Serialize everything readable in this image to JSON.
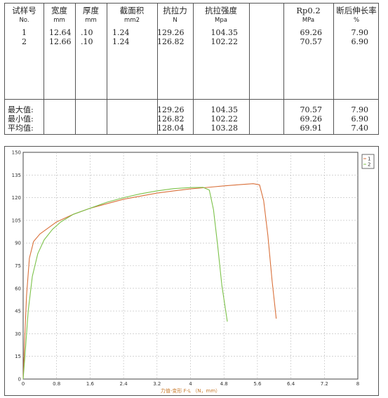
{
  "table": {
    "headers": [
      {
        "title": "试样号",
        "unit": "No."
      },
      {
        "title": "宽度",
        "unit": "mm"
      },
      {
        "title": "厚度",
        "unit": "mm"
      },
      {
        "title": "截面积",
        "unit": "mm2"
      },
      {
        "title": "抗拉力",
        "unit": "N"
      },
      {
        "title": "抗拉强度",
        "unit": "Mpa"
      },
      {
        "title": "",
        "unit": ""
      },
      {
        "title": "Rp0.2",
        "unit": "MPa"
      },
      {
        "title": "断后伸长率",
        "unit": "%"
      }
    ],
    "rows": [
      [
        "1",
        "12.64",
        ".10",
        "1.24",
        "129.26",
        "104.35",
        "",
        "69.26",
        "7.90"
      ],
      [
        "2",
        "12.66",
        ".10",
        "1.24",
        "126.82",
        "102.22",
        "",
        "70.57",
        "6.90"
      ]
    ],
    "summary": [
      [
        "最大值:",
        "",
        "",
        "",
        "129.26",
        "104.35",
        "",
        "70.57",
        "7.90"
      ],
      [
        "最小值:",
        "",
        "",
        "",
        "126.82",
        "102.22",
        "",
        "69.26",
        "6.90"
      ],
      [
        "平均值:",
        "",
        "",
        "",
        "128.04",
        "103.28",
        "",
        "69.91",
        "7.40"
      ]
    ]
  },
  "chart_data": {
    "type": "line",
    "xlabel": "力值-变形 F-L  （N，mm）",
    "xlim": [
      0,
      8
    ],
    "ylim": [
      0,
      150
    ],
    "xticks": [
      "0",
      "0.8",
      "1.6",
      "2.4",
      "3.2",
      "4",
      "4.8",
      "5.6",
      "6.4",
      "7.2",
      "8"
    ],
    "yticks": [
      "0",
      "15",
      "30",
      "45",
      "60",
      "75",
      "90",
      "105",
      "120",
      "135",
      "150"
    ],
    "grid": true,
    "legend": [
      "1",
      "2"
    ],
    "legend_position": "top-right",
    "series": [
      {
        "name": "1",
        "color": "#d9703a",
        "x": [
          0,
          0.03,
          0.08,
          0.15,
          0.25,
          0.4,
          0.6,
          0.8,
          1.2,
          1.6,
          2.0,
          2.4,
          2.8,
          3.2,
          3.6,
          4.0,
          4.4,
          4.8,
          5.2,
          5.5,
          5.65,
          5.75,
          5.85,
          5.95,
          6.05
        ],
        "y": [
          0,
          22,
          55,
          80,
          91,
          96,
          100,
          104,
          109,
          113,
          116,
          119,
          121,
          123,
          124.5,
          125.8,
          126.8,
          127.8,
          128.7,
          129.26,
          128.5,
          118,
          95,
          65,
          40
        ]
      },
      {
        "name": "2",
        "color": "#7cc24a",
        "x": [
          0,
          0.05,
          0.12,
          0.22,
          0.35,
          0.5,
          0.7,
          0.9,
          1.2,
          1.6,
          2.0,
          2.4,
          2.8,
          3.2,
          3.6,
          4.0,
          4.3,
          4.45,
          4.55,
          4.65,
          4.75,
          4.88
        ],
        "y": [
          0,
          18,
          45,
          68,
          83,
          92,
          99,
          104,
          109,
          113,
          117,
          120,
          122.5,
          124.5,
          126,
          126.7,
          126.82,
          125,
          112,
          88,
          62,
          38
        ]
      }
    ]
  }
}
